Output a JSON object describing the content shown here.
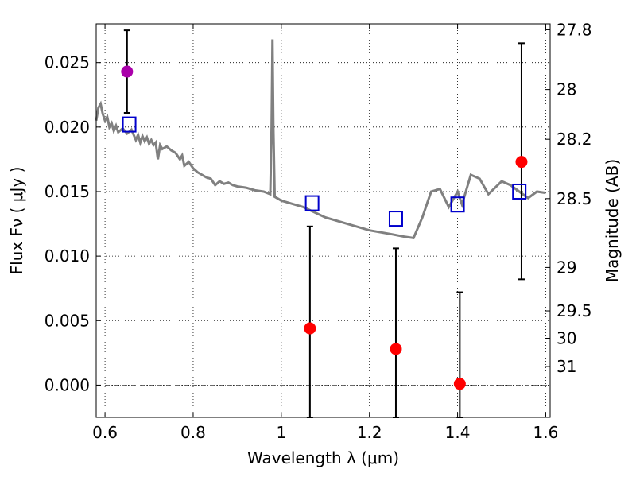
{
  "chart_data": {
    "type": "scatter",
    "xlabel": "Wavelength  λ (μm)",
    "ylabel": "Flux  Fν  ( μJy )",
    "ylabel_right": "Magnitude (AB)",
    "xlim": [
      0.58,
      1.61
    ],
    "ylim": [
      -0.0025,
      0.028
    ],
    "grid": true,
    "x_ticks": [
      {
        "value": 0.6,
        "label": "0.6"
      },
      {
        "value": 0.8,
        "label": "0.8"
      },
      {
        "value": 1.0,
        "label": "1"
      },
      {
        "value": 1.2,
        "label": "1.2"
      },
      {
        "value": 1.4,
        "label": "1.4"
      },
      {
        "value": 1.6,
        "label": "1.6"
      }
    ],
    "y_ticks": [
      {
        "value": 0.0,
        "label": "0.000"
      },
      {
        "value": 0.005,
        "label": "0.005"
      },
      {
        "value": 0.01,
        "label": "0.010"
      },
      {
        "value": 0.015,
        "label": "0.015"
      },
      {
        "value": 0.02,
        "label": "0.020"
      },
      {
        "value": 0.025,
        "label": "0.025"
      }
    ],
    "y_right_ticks": [
      {
        "value": 27.8,
        "label": "27.8"
      },
      {
        "value": 28.0,
        "label": "28"
      },
      {
        "value": 28.2,
        "label": "28.2"
      },
      {
        "value": 28.5,
        "label": "28.5"
      },
      {
        "value": 29.0,
        "label": "29"
      },
      {
        "value": 29.5,
        "label": "29.5"
      },
      {
        "value": 30.0,
        "label": "30"
      },
      {
        "value": 31.0,
        "label": "31"
      }
    ],
    "model_spectrum": {
      "color": "#808080",
      "x": [
        0.58,
        0.585,
        0.59,
        0.595,
        0.6,
        0.605,
        0.61,
        0.615,
        0.62,
        0.625,
        0.63,
        0.64,
        0.65,
        0.66,
        0.67,
        0.675,
        0.68,
        0.685,
        0.69,
        0.695,
        0.7,
        0.705,
        0.71,
        0.715,
        0.72,
        0.725,
        0.73,
        0.74,
        0.75,
        0.76,
        0.77,
        0.775,
        0.78,
        0.79,
        0.8,
        0.81,
        0.82,
        0.83,
        0.84,
        0.85,
        0.86,
        0.87,
        0.88,
        0.89,
        0.9,
        0.92,
        0.94,
        0.96,
        0.975,
        0.978,
        0.98,
        0.982,
        0.985,
        1.0,
        1.05,
        1.1,
        1.15,
        1.2,
        1.25,
        1.28,
        1.3,
        1.32,
        1.34,
        1.36,
        1.38,
        1.4,
        1.41,
        1.43,
        1.45,
        1.47,
        1.5,
        1.52,
        1.54,
        1.56,
        1.58,
        1.6
      ],
      "y": [
        0.0205,
        0.0215,
        0.0218,
        0.021,
        0.0205,
        0.0208,
        0.02,
        0.0203,
        0.0197,
        0.0201,
        0.0196,
        0.0199,
        0.0195,
        0.0198,
        0.019,
        0.0194,
        0.0188,
        0.0193,
        0.0189,
        0.0192,
        0.0187,
        0.019,
        0.0186,
        0.0188,
        0.0175,
        0.0186,
        0.0183,
        0.0185,
        0.0182,
        0.018,
        0.0175,
        0.0178,
        0.017,
        0.0173,
        0.0168,
        0.0165,
        0.0163,
        0.0161,
        0.016,
        0.0155,
        0.0158,
        0.0156,
        0.0157,
        0.0155,
        0.0154,
        0.0153,
        0.0151,
        0.015,
        0.0148,
        0.02,
        0.0268,
        0.02,
        0.0146,
        0.0143,
        0.0138,
        0.013,
        0.0125,
        0.012,
        0.0117,
        0.0115,
        0.0114,
        0.013,
        0.015,
        0.0152,
        0.0138,
        0.015,
        0.014,
        0.0163,
        0.016,
        0.0148,
        0.0158,
        0.0155,
        0.015,
        0.0145,
        0.015,
        0.0149
      ]
    },
    "photometry": {
      "color": "#ff0000",
      "x": [
        1.065,
        1.26,
        1.405,
        1.545
      ],
      "y": [
        0.0044,
        0.0028,
        0.0001,
        0.0173
      ],
      "yerr_low": [
        0.0069,
        0.0053,
        0.0026,
        0.0091
      ],
      "yerr_high": [
        0.0079,
        0.0078,
        0.0071,
        0.0092
      ]
    },
    "photometry_optical": {
      "color": "#aa00aa",
      "x": [
        0.65
      ],
      "y": [
        0.0243
      ],
      "yerr_low": [
        0.0032
      ],
      "yerr_high": [
        0.0032
      ]
    },
    "model_bands": {
      "color": "#0000cc",
      "x": [
        0.655,
        1.07,
        1.26,
        1.4,
        1.54
      ],
      "y": [
        0.0202,
        0.0141,
        0.0129,
        0.014,
        0.015
      ]
    }
  }
}
